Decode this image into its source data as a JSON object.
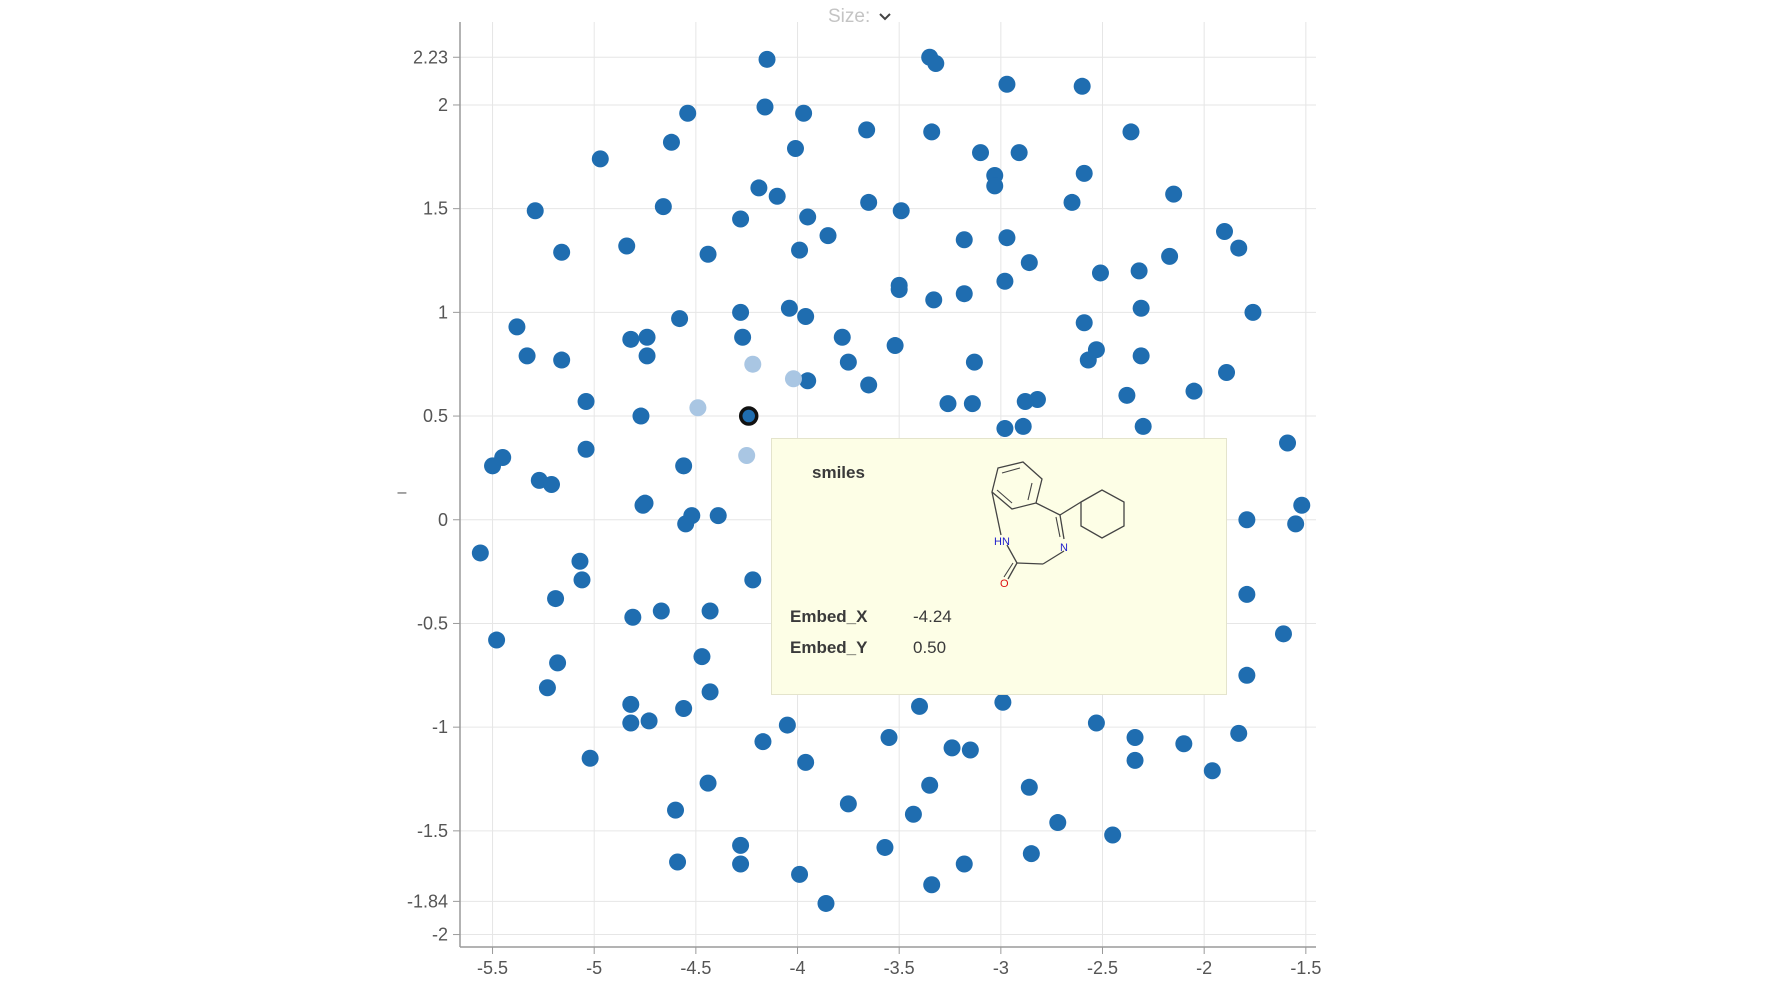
{
  "controls": {
    "size_label": "Size:",
    "size_icon": "chevron-down-icon"
  },
  "axis": {
    "y_left_mark": "–"
  },
  "colors": {
    "point": "#1f6db0",
    "point_faded": "#a9c6e3",
    "selected_outline": "#111111",
    "grid": "#e6e6e6",
    "tooltip_bg": "#fdfee6"
  },
  "tooltip": {
    "smiles_label": "smiles",
    "molecule_atoms": {
      "nh": "HN",
      "n": "N",
      "o": "O"
    },
    "fields": [
      {
        "label": "Embed_X",
        "value": "-4.24"
      },
      {
        "label": "Embed_Y",
        "value": "0.50"
      }
    ]
  },
  "chart_data": {
    "type": "scatter",
    "xlim": [
      -5.66,
      -1.45
    ],
    "ylim": [
      -2.06,
      2.4
    ],
    "x_ticks": [
      "-5.5",
      "-5",
      "-4.5",
      "-4",
      "-3.5",
      "-3",
      "-2.5",
      "-2",
      "-1.5"
    ],
    "x_tick_values": [
      -5.5,
      -5,
      -4.5,
      -4,
      -3.5,
      -3,
      -2.5,
      -2,
      -1.5
    ],
    "y_ticks": [
      "2.23",
      "2",
      "1.5",
      "1",
      "0.5",
      "0",
      "-0.5",
      "-1",
      "-1.5",
      "-1.84",
      "-2"
    ],
    "y_tick_values": [
      2.23,
      2,
      1.5,
      1,
      0.5,
      0,
      -0.5,
      -1,
      -1.5,
      -1.84,
      -2
    ],
    "grid": true,
    "selected": {
      "x": -4.24,
      "y": 0.5
    },
    "faded_points": [
      [
        -4.22,
        0.75
      ],
      [
        -4.02,
        0.68
      ],
      [
        -4.49,
        0.54
      ],
      [
        -4.25,
        0.31
      ]
    ],
    "points": [
      [
        -4.15,
        2.22
      ],
      [
        -3.35,
        2.23
      ],
      [
        -3.32,
        2.2
      ],
      [
        -2.97,
        2.1
      ],
      [
        -2.6,
        2.09
      ],
      [
        -4.16,
        1.99
      ],
      [
        -3.97,
        1.96
      ],
      [
        -4.54,
        1.96
      ],
      [
        -3.66,
        1.88
      ],
      [
        -3.34,
        1.87
      ],
      [
        -2.36,
        1.87
      ],
      [
        -4.62,
        1.82
      ],
      [
        -4.01,
        1.79
      ],
      [
        -3.1,
        1.77
      ],
      [
        -2.91,
        1.77
      ],
      [
        -4.97,
        1.74
      ],
      [
        -3.03,
        1.66
      ],
      [
        -2.59,
        1.67
      ],
      [
        -3.03,
        1.61
      ],
      [
        -4.19,
        1.6
      ],
      [
        -4.1,
        1.56
      ],
      [
        -2.15,
        1.57
      ],
      [
        -2.65,
        1.53
      ],
      [
        -3.65,
        1.53
      ],
      [
        -4.66,
        1.51
      ],
      [
        -5.29,
        1.49
      ],
      [
        -3.49,
        1.49
      ],
      [
        -3.95,
        1.46
      ],
      [
        -4.28,
        1.45
      ],
      [
        -1.9,
        1.39
      ],
      [
        -3.85,
        1.37
      ],
      [
        -3.18,
        1.35
      ],
      [
        -2.97,
        1.36
      ],
      [
        -4.84,
        1.32
      ],
      [
        -1.83,
        1.31
      ],
      [
        -3.99,
        1.3
      ],
      [
        -5.16,
        1.29
      ],
      [
        -4.44,
        1.28
      ],
      [
        -2.17,
        1.27
      ],
      [
        -2.86,
        1.24
      ],
      [
        -2.51,
        1.19
      ],
      [
        -2.32,
        1.2
      ],
      [
        -3.5,
        1.13
      ],
      [
        -2.98,
        1.15
      ],
      [
        -3.5,
        1.11
      ],
      [
        -3.18,
        1.09
      ],
      [
        -3.33,
        1.06
      ],
      [
        -4.04,
        1.02
      ],
      [
        -2.31,
        1.02
      ],
      [
        -4.28,
        1.0
      ],
      [
        -1.76,
        1.0
      ],
      [
        -3.96,
        0.98
      ],
      [
        -4.58,
        0.97
      ],
      [
        -2.59,
        0.95
      ],
      [
        -5.38,
        0.93
      ],
      [
        -4.82,
        0.87
      ],
      [
        -4.27,
        0.88
      ],
      [
        -3.78,
        0.88
      ],
      [
        -4.74,
        0.88
      ],
      [
        -2.53,
        0.82
      ],
      [
        -3.52,
        0.84
      ],
      [
        -5.33,
        0.79
      ],
      [
        -4.74,
        0.79
      ],
      [
        -2.57,
        0.77
      ],
      [
        -2.31,
        0.79
      ],
      [
        -5.16,
        0.77
      ],
      [
        -3.13,
        0.76
      ],
      [
        -3.75,
        0.76
      ],
      [
        -1.89,
        0.71
      ],
      [
        -3.95,
        0.67
      ],
      [
        -3.65,
        0.65
      ],
      [
        -2.05,
        0.62
      ],
      [
        -2.38,
        0.6
      ],
      [
        -2.82,
        0.58
      ],
      [
        -5.04,
        0.57
      ],
      [
        -3.26,
        0.56
      ],
      [
        -3.14,
        0.56
      ],
      [
        -2.88,
        0.57
      ],
      [
        -4.77,
        0.5
      ],
      [
        -2.3,
        0.45
      ],
      [
        -2.98,
        0.44
      ],
      [
        -2.89,
        0.45
      ],
      [
        -1.59,
        0.37
      ],
      [
        -5.45,
        0.3
      ],
      [
        -5.04,
        0.34
      ],
      [
        -4.56,
        0.26
      ],
      [
        -5.5,
        0.26
      ],
      [
        -5.27,
        0.19
      ],
      [
        -5.21,
        0.17
      ],
      [
        -4.75,
        0.08
      ],
      [
        -4.76,
        0.07
      ],
      [
        -1.52,
        0.07
      ],
      [
        -4.52,
        0.02
      ],
      [
        -4.39,
        0.02
      ],
      [
        -4.55,
        -0.02
      ],
      [
        -1.79,
        0.0
      ],
      [
        -1.55,
        -0.02
      ],
      [
        -5.56,
        -0.16
      ],
      [
        -5.07,
        -0.2
      ],
      [
        -5.06,
        -0.29
      ],
      [
        -4.22,
        -0.29
      ],
      [
        -5.19,
        -0.38
      ],
      [
        -1.79,
        -0.36
      ],
      [
        -4.81,
        -0.47
      ],
      [
        -4.67,
        -0.44
      ],
      [
        -4.43,
        -0.44
      ],
      [
        -5.48,
        -0.58
      ],
      [
        -1.61,
        -0.55
      ],
      [
        -4.47,
        -0.66
      ],
      [
        -5.18,
        -0.69
      ],
      [
        -1.79,
        -0.75
      ],
      [
        -5.23,
        -0.81
      ],
      [
        -4.43,
        -0.83
      ],
      [
        -4.82,
        -0.89
      ],
      [
        -4.56,
        -0.91
      ],
      [
        -3.4,
        -0.9
      ],
      [
        -2.99,
        -0.88
      ],
      [
        -4.82,
        -0.98
      ],
      [
        -4.73,
        -0.97
      ],
      [
        -4.05,
        -0.99
      ],
      [
        -2.53,
        -0.98
      ],
      [
        -2.34,
        -1.05
      ],
      [
        -1.83,
        -1.03
      ],
      [
        -3.55,
        -1.05
      ],
      [
        -4.17,
        -1.07
      ],
      [
        -2.1,
        -1.08
      ],
      [
        -3.24,
        -1.1
      ],
      [
        -3.15,
        -1.11
      ],
      [
        -5.02,
        -1.15
      ],
      [
        -3.96,
        -1.17
      ],
      [
        -2.34,
        -1.16
      ],
      [
        -1.96,
        -1.21
      ],
      [
        -4.44,
        -1.27
      ],
      [
        -3.35,
        -1.28
      ],
      [
        -2.86,
        -1.29
      ],
      [
        -3.75,
        -1.37
      ],
      [
        -4.6,
        -1.4
      ],
      [
        -3.43,
        -1.42
      ],
      [
        -2.72,
        -1.46
      ],
      [
        -2.45,
        -1.52
      ],
      [
        -4.28,
        -1.57
      ],
      [
        -3.57,
        -1.58
      ],
      [
        -4.59,
        -1.65
      ],
      [
        -4.28,
        -1.66
      ],
      [
        -3.18,
        -1.66
      ],
      [
        -2.85,
        -1.61
      ],
      [
        -3.99,
        -1.71
      ],
      [
        -3.34,
        -1.76
      ],
      [
        -3.86,
        -1.85
      ]
    ]
  }
}
